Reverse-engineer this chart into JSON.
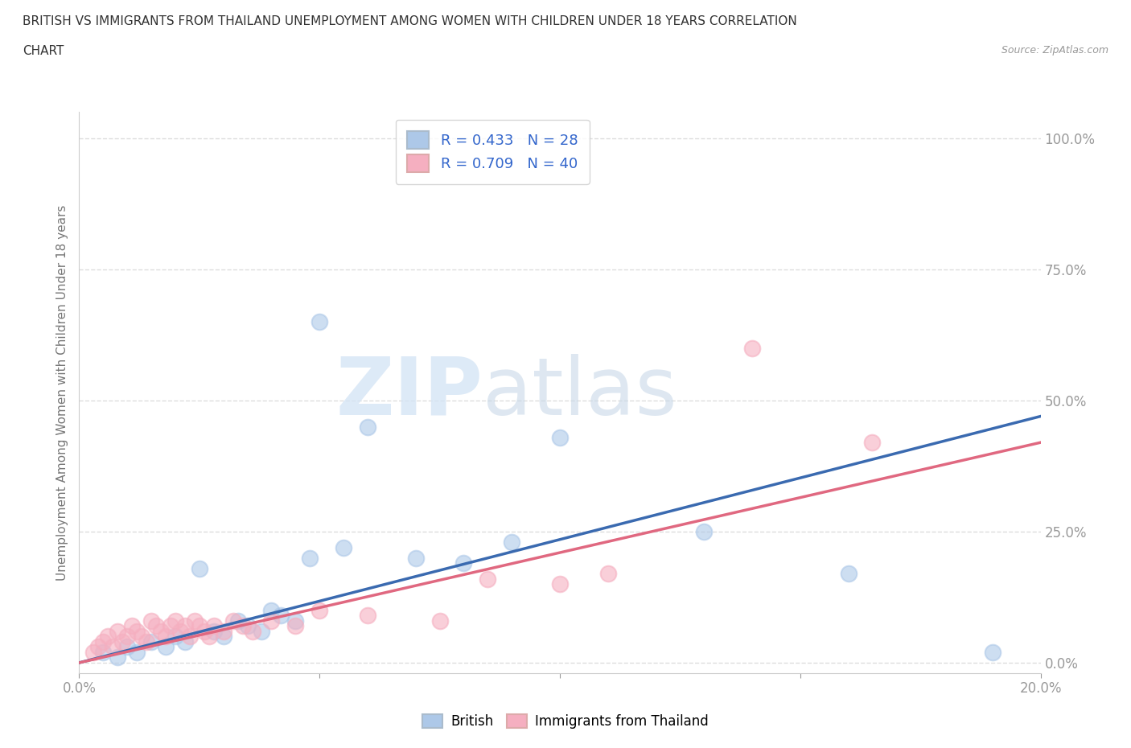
{
  "title_line1": "BRITISH VS IMMIGRANTS FROM THAILAND UNEMPLOYMENT AMONG WOMEN WITH CHILDREN UNDER 18 YEARS CORRELATION",
  "title_line2": "CHART",
  "source": "Source: ZipAtlas.com",
  "ylabel": "Unemployment Among Women with Children Under 18 years",
  "xlim": [
    0.0,
    0.2
  ],
  "ylim": [
    -0.02,
    1.05
  ],
  "yticks": [
    0.0,
    0.25,
    0.5,
    0.75,
    1.0
  ],
  "ytick_labels": [
    "0.0%",
    "25.0%",
    "50.0%",
    "75.0%",
    "100.0%"
  ],
  "xticks": [
    0.0,
    0.05,
    0.1,
    0.15,
    0.2
  ],
  "xtick_labels": [
    "0.0%",
    "",
    "",
    "",
    "20.0%"
  ],
  "british_R": 0.433,
  "british_N": 28,
  "thailand_R": 0.709,
  "thailand_N": 40,
  "british_color": "#adc8e8",
  "thailand_color": "#f5afc0",
  "british_line_color": "#3a6ab0",
  "thailand_line_color": "#e06880",
  "british_scatter_x": [
    0.005,
    0.008,
    0.01,
    0.012,
    0.015,
    0.018,
    0.02,
    0.022,
    0.025,
    0.028,
    0.03,
    0.033,
    0.035,
    0.038,
    0.04,
    0.042,
    0.045,
    0.048,
    0.05,
    0.055,
    0.06,
    0.07,
    0.08,
    0.09,
    0.1,
    0.13,
    0.16,
    0.19
  ],
  "british_scatter_y": [
    0.02,
    0.01,
    0.03,
    0.02,
    0.04,
    0.03,
    0.05,
    0.04,
    0.18,
    0.06,
    0.05,
    0.08,
    0.07,
    0.06,
    0.1,
    0.09,
    0.08,
    0.2,
    0.65,
    0.22,
    0.45,
    0.2,
    0.19,
    0.23,
    0.43,
    0.25,
    0.17,
    0.02
  ],
  "thailand_scatter_x": [
    0.003,
    0.004,
    0.005,
    0.006,
    0.007,
    0.008,
    0.009,
    0.01,
    0.011,
    0.012,
    0.013,
    0.014,
    0.015,
    0.016,
    0.017,
    0.018,
    0.019,
    0.02,
    0.021,
    0.022,
    0.023,
    0.024,
    0.025,
    0.026,
    0.027,
    0.028,
    0.03,
    0.032,
    0.034,
    0.036,
    0.04,
    0.045,
    0.05,
    0.06,
    0.075,
    0.085,
    0.1,
    0.11,
    0.14,
    0.165
  ],
  "thailand_scatter_y": [
    0.02,
    0.03,
    0.04,
    0.05,
    0.03,
    0.06,
    0.04,
    0.05,
    0.07,
    0.06,
    0.05,
    0.04,
    0.08,
    0.07,
    0.06,
    0.05,
    0.07,
    0.08,
    0.06,
    0.07,
    0.05,
    0.08,
    0.07,
    0.06,
    0.05,
    0.07,
    0.06,
    0.08,
    0.07,
    0.06,
    0.08,
    0.07,
    0.1,
    0.09,
    0.08,
    0.16,
    0.15,
    0.17,
    0.6,
    0.42
  ],
  "british_line_x0": 0.0,
  "british_line_y0": 0.0,
  "british_line_x1": 0.2,
  "british_line_y1": 0.47,
  "thailand_line_x0": 0.0,
  "thailand_line_y0": 0.0,
  "thailand_line_x1": 0.2,
  "thailand_line_y1": 0.42,
  "watermark_zip": "ZIP",
  "watermark_atlas": "atlas",
  "background_color": "#ffffff",
  "grid_color": "#dddddd",
  "tick_color": "#5599cc",
  "legend_label1": "R = 0.433   N = 28",
  "legend_label2": "R = 0.709   N = 40",
  "bottom_label_british": "British",
  "bottom_label_thailand": "Immigrants from Thailand"
}
